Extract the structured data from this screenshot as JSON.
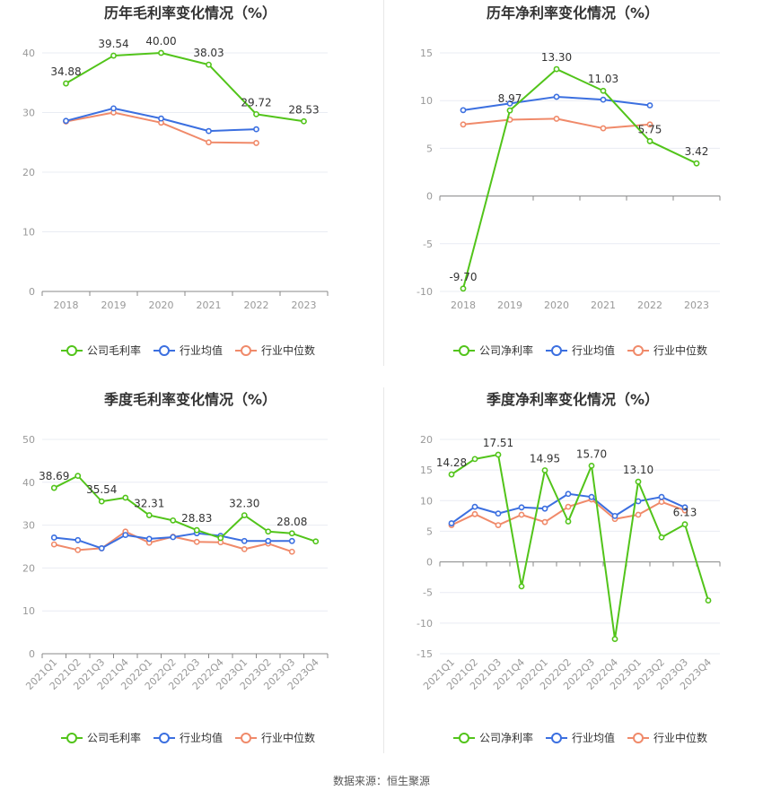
{
  "source": "数据来源：恒生聚源",
  "colors": {
    "company": "#52c41a",
    "average": "#3b6fe0",
    "median": "#f08a6a",
    "grid": "#e9ecf3",
    "axis": "#888888",
    "tick": "#999999"
  },
  "chart_data": [
    {
      "type": "line",
      "title": "历年毛利率变化情况（%）",
      "categories": [
        "2018",
        "2019",
        "2020",
        "2021",
        "2022",
        "2023"
      ],
      "ylim": [
        0,
        40
      ],
      "yticks": [
        0,
        10,
        20,
        30,
        40
      ],
      "grid": true,
      "legend": "bottom",
      "series": [
        {
          "name": "公司毛利率",
          "key": "company",
          "values": [
            34.88,
            39.54,
            40.0,
            38.03,
            29.72,
            28.53
          ],
          "labels": [
            "34.88",
            "39.54",
            "40.00",
            "38.03",
            "29.72",
            "28.53"
          ]
        },
        {
          "name": "行业均值",
          "key": "average",
          "values": [
            28.6,
            30.7,
            29.0,
            26.9,
            27.2,
            null
          ]
        },
        {
          "name": "行业中位数",
          "key": "median",
          "values": [
            28.5,
            30.0,
            28.3,
            25.0,
            24.9,
            null
          ]
        }
      ]
    },
    {
      "type": "line",
      "title": "历年净利率变化情况（%）",
      "categories": [
        "2018",
        "2019",
        "2020",
        "2021",
        "2022",
        "2023"
      ],
      "ylim": [
        -10,
        15
      ],
      "yticks": [
        -10,
        -5,
        0,
        5,
        10,
        15
      ],
      "grid": true,
      "legend": "bottom",
      "series": [
        {
          "name": "公司净利率",
          "key": "company",
          "values": [
            -9.7,
            8.97,
            13.3,
            11.03,
            5.75,
            3.42
          ],
          "labels": [
            "-9.70",
            "8.97",
            "13.30",
            "11.03",
            "5.75",
            "3.42"
          ]
        },
        {
          "name": "行业均值",
          "key": "average",
          "values": [
            9.0,
            9.7,
            10.4,
            10.1,
            9.5,
            null
          ]
        },
        {
          "name": "行业中位数",
          "key": "median",
          "values": [
            7.5,
            8.0,
            8.1,
            7.1,
            7.5,
            null
          ]
        }
      ]
    },
    {
      "type": "line",
      "title": "季度毛利率变化情况（%）",
      "categories": [
        "2021Q1",
        "2021Q2",
        "2021Q3",
        "2021Q4",
        "2022Q1",
        "2022Q2",
        "2022Q3",
        "2022Q4",
        "2023Q1",
        "2023Q2",
        "2023Q3",
        "2023Q4"
      ],
      "ylim": [
        0,
        50
      ],
      "yticks": [
        0,
        10,
        20,
        30,
        40,
        50
      ],
      "grid": true,
      "legend": "bottom",
      "series": [
        {
          "name": "公司毛利率",
          "key": "company",
          "values": [
            38.69,
            41.5,
            35.54,
            36.4,
            32.31,
            31.1,
            28.83,
            27.0,
            32.3,
            28.5,
            28.08,
            26.2
          ],
          "labels": [
            "38.69",
            "",
            "35.54",
            "",
            "32.31",
            "",
            "28.83",
            "",
            "32.30",
            "",
            "28.08",
            ""
          ]
        },
        {
          "name": "行业均值",
          "key": "average",
          "values": [
            27.1,
            26.5,
            24.6,
            27.7,
            26.8,
            27.2,
            28.1,
            27.5,
            26.3,
            26.3,
            26.3,
            null
          ]
        },
        {
          "name": "行业中位数",
          "key": "median",
          "values": [
            25.5,
            24.2,
            24.6,
            28.5,
            25.9,
            27.3,
            26.1,
            26.0,
            24.4,
            25.7,
            23.8,
            null
          ]
        }
      ]
    },
    {
      "type": "line",
      "title": "季度净利率变化情况（%）",
      "categories": [
        "2021Q1",
        "2021Q2",
        "2021Q3",
        "2021Q4",
        "2022Q1",
        "2022Q2",
        "2022Q3",
        "2022Q4",
        "2023Q1",
        "2023Q2",
        "2023Q3",
        "2023Q4"
      ],
      "ylim": [
        -15,
        20
      ],
      "yticks": [
        -15,
        -10,
        -5,
        0,
        5,
        10,
        15,
        20
      ],
      "grid": true,
      "legend": "bottom",
      "series": [
        {
          "name": "公司净利率",
          "key": "company",
          "values": [
            14.28,
            16.8,
            17.51,
            -4.0,
            14.95,
            6.6,
            15.7,
            -12.6,
            13.1,
            4.0,
            6.13,
            -6.3
          ],
          "labels": [
            "14.28",
            "",
            "17.51",
            "",
            "14.95",
            "",
            "15.70",
            "",
            "13.10",
            "",
            "6.13",
            ""
          ]
        },
        {
          "name": "行业均值",
          "key": "average",
          "values": [
            6.3,
            9.0,
            7.9,
            8.9,
            8.7,
            11.1,
            10.6,
            7.5,
            9.9,
            10.6,
            8.9,
            null
          ]
        },
        {
          "name": "行业中位数",
          "key": "median",
          "values": [
            6.0,
            7.8,
            6.0,
            7.7,
            6.5,
            9.0,
            10.2,
            7.0,
            7.7,
            9.8,
            8.4,
            null
          ]
        }
      ]
    }
  ]
}
